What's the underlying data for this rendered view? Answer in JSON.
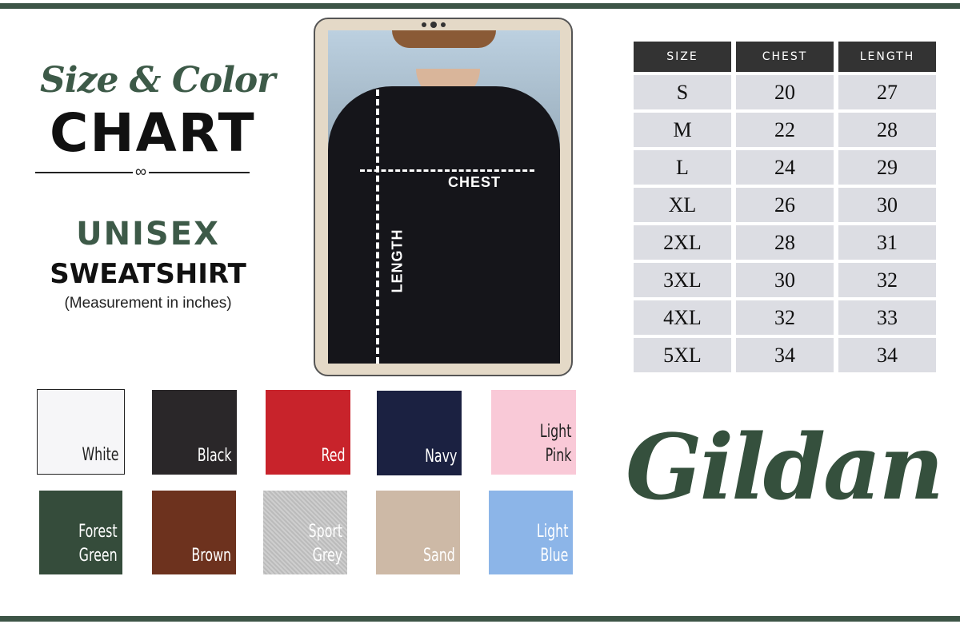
{
  "header": {
    "title_script": "Size & Color",
    "title_bold": "CHART",
    "product_line1": "UNISEX",
    "product_line2": "SWEATSHIRT",
    "units_note": "(Measurement in inches)"
  },
  "photo": {
    "chest_label": "CHEST",
    "length_label": "LENGTH"
  },
  "size_table": {
    "columns": [
      "SIZE",
      "CHEST",
      "LENGTH"
    ],
    "rows": [
      [
        "S",
        "20",
        "27"
      ],
      [
        "M",
        "22",
        "28"
      ],
      [
        "L",
        "24",
        "29"
      ],
      [
        "XL",
        "26",
        "30"
      ],
      [
        "2XL",
        "28",
        "31"
      ],
      [
        "3XL",
        "30",
        "32"
      ],
      [
        "4XL",
        "32",
        "33"
      ],
      [
        "5XL",
        "34",
        "34"
      ]
    ]
  },
  "colors": [
    {
      "name": "White",
      "hex": "#f6f6f8"
    },
    {
      "name": "Black",
      "hex": "#2a2729"
    },
    {
      "name": "Red",
      "hex": "#c8232b"
    },
    {
      "name": "Navy",
      "hex": "#1b2141"
    },
    {
      "name": "Light Pink",
      "hex": "#f9c9d7"
    },
    {
      "name": "Forest Green",
      "hex": "#354c3b"
    },
    {
      "name": "Brown",
      "hex": "#6d321e"
    },
    {
      "name": "Sport Grey",
      "hex": "#c5c5c5"
    },
    {
      "name": "Sand",
      "hex": "#cdb9a6"
    },
    {
      "name": "Light Blue",
      "hex": "#8cb5e8"
    }
  ],
  "brand": "Gildan",
  "accent": "#3c5446"
}
